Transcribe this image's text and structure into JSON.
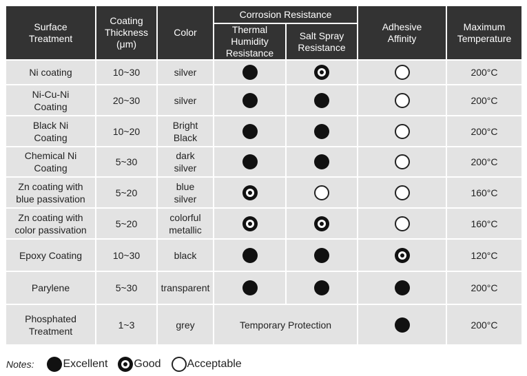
{
  "header": {
    "columns": [
      "Surface\nTreatment",
      "Coating\nThickness\n(μm)",
      "Color",
      "Thermal\nHumidity\nResistance",
      "Salt Spray\nResistance",
      "Adhesive\nAffinity",
      "Maximum\nTemperature"
    ],
    "group": "Corrosion Resistance"
  },
  "table": {
    "rows": [
      [
        "Ni coating",
        "10~30",
        "silver",
        "Excellent",
        "Good",
        "Acceptable",
        "200°C"
      ],
      [
        "Ni-Cu-Ni\nCoating",
        "20~30",
        "silver",
        "Excellent",
        "Excellent",
        "Acceptable",
        "200°C"
      ],
      [
        "Black Ni\nCoating",
        "10~20",
        "Bright\nBlack",
        "Excellent",
        "Excellent",
        "Acceptable",
        "200°C"
      ],
      [
        "Chemical Ni\nCoating",
        "5~30",
        "dark\nsilver",
        "Excellent",
        "Excellent",
        "Acceptable",
        "200°C"
      ],
      [
        "Zn coating with\nblue passivation",
        "5~20",
        "blue\nsilver",
        "Good",
        "Acceptable",
        "Acceptable",
        "160°C"
      ],
      [
        "Zn coating with\ncolor passivation",
        "5~20",
        "colorful\nmetallic",
        "Good",
        "Good",
        "Acceptable",
        "160°C"
      ],
      [
        "Epoxy Coating",
        "10~30",
        "black",
        "Excellent",
        "Excellent",
        "Good",
        "120°C"
      ],
      [
        "Parylene",
        "5~30",
        "transparent",
        "Excellent",
        "Excellent",
        "Excellent",
        "200°C"
      ],
      [
        "Phosphated\nTreatment",
        "1~3",
        "grey",
        "Temporary Protection",
        "Excellent",
        "200°C"
      ]
    ]
  },
  "notes": {
    "label": "Notes:",
    "legend": [
      "Excellent",
      "Good",
      "Acceptable"
    ]
  }
}
